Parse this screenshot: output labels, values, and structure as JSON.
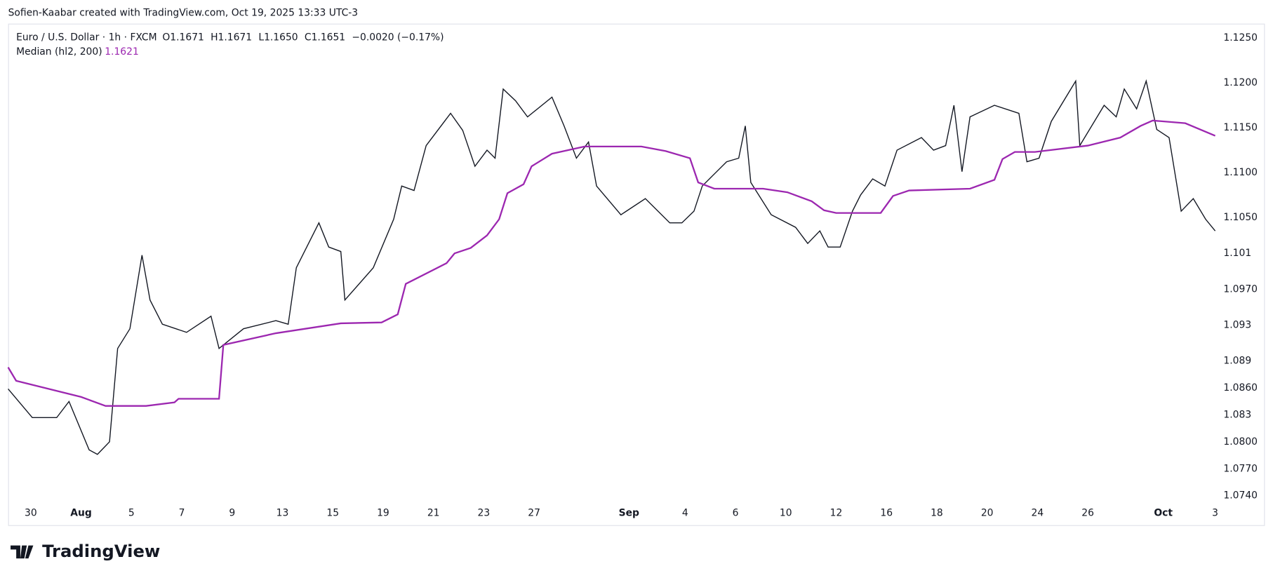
{
  "header": {
    "credit": "Sofien-Kaabar created with TradingView.com, Oct 19, 2025 13:33 UTC-3",
    "logo": "TradingView"
  },
  "chart_data": {
    "type": "line",
    "symbol": "Euro / U.S. Dollar · 1h · FXCM",
    "ohlc": [
      "O1.1671",
      "H1.1671",
      "L1.1650",
      "C1.1651",
      "−0.0020 (−0.17%)"
    ],
    "indicator": {
      "name": "Median (hl2, 200)",
      "value": "1.1621"
    },
    "xlim": [
      -0.9,
      47.1
    ],
    "xticks": [
      {
        "value": 0,
        "label": "30"
      },
      {
        "value": 2,
        "label": "Aug"
      },
      {
        "value": 4,
        "label": "5"
      },
      {
        "value": 6,
        "label": "7"
      },
      {
        "value": 8,
        "label": "9"
      },
      {
        "value": 10,
        "label": "13"
      },
      {
        "value": 12,
        "label": "15"
      },
      {
        "value": 14,
        "label": "19"
      },
      {
        "value": 16,
        "label": "21"
      },
      {
        "value": 18,
        "label": "23"
      },
      {
        "value": 20,
        "label": "27"
      },
      {
        "value": 23.77,
        "label": "Sep"
      },
      {
        "value": 26,
        "label": "4"
      },
      {
        "value": 28,
        "label": "6"
      },
      {
        "value": 30,
        "label": "10"
      },
      {
        "value": 32,
        "label": "12"
      },
      {
        "value": 34,
        "label": "16"
      },
      {
        "value": 36,
        "label": "18"
      },
      {
        "value": 38,
        "label": "20"
      },
      {
        "value": 40,
        "label": "24"
      },
      {
        "value": 42,
        "label": "26"
      },
      {
        "value": 45,
        "label": "Oct"
      },
      {
        "value": 47.06,
        "label": "3"
      }
    ],
    "ylim": [
      1.0709,
      1.1265
    ],
    "yticks": [
      {
        "value": 1.125,
        "label": "1.1250"
      },
      {
        "value": 1.12,
        "label": "1.1200"
      },
      {
        "value": 1.115,
        "label": "1.1150"
      },
      {
        "value": 1.11,
        "label": "1.1100"
      },
      {
        "value": 1.105,
        "label": "1.1050"
      },
      1.101,
      {
        "value": 1.097,
        "label": "1.0970"
      },
      1.093,
      1.089,
      {
        "value": 1.086,
        "label": "1.0860"
      },
      1.083,
      {
        "value": 1.08,
        "label": "1.0800"
      },
      {
        "value": 1.077,
        "label": "1.0770"
      },
      {
        "value": 1.074,
        "label": "1.0740"
      }
    ],
    "series": [
      {
        "name": "Euro / U.S. Dollar",
        "color": "#131722",
        "x": [
          -0.9,
          0.06,
          1.03,
          1.52,
          2.32,
          2.65,
          3.13,
          3.45,
          3.94,
          4.42,
          4.74,
          5.23,
          6.19,
          7.16,
          7.48,
          8.45,
          9.74,
          10.23,
          10.55,
          11.45,
          11.84,
          12.32,
          12.48,
          13.61,
          14.42,
          14.74,
          15.23,
          15.71,
          16.68,
          17.16,
          17.65,
          18.13,
          18.45,
          18.77,
          19.26,
          19.74,
          20.71,
          21.19,
          21.68,
          22.16,
          22.48,
          23.45,
          24.42,
          25.39,
          25.87,
          26.35,
          26.68,
          27.65,
          28.13,
          28.39,
          28.61,
          29.42,
          30.39,
          30.87,
          31.35,
          31.68,
          32.16,
          32.65,
          32.97,
          33.45,
          33.94,
          34.42,
          35.39,
          35.87,
          36.35,
          36.68,
          37.0,
          37.32,
          38.29,
          39.26,
          39.58,
          40.06,
          40.55,
          41.52,
          41.68,
          42.65,
          43.13,
          43.45,
          43.94,
          44.32,
          44.74,
          45.23,
          45.71,
          46.19,
          46.68,
          47.06
        ],
        "values": [
          1.0859,
          1.0827,
          1.0827,
          1.0845,
          1.0791,
          1.0786,
          1.08,
          1.0904,
          1.0926,
          1.1008,
          1.0958,
          1.0931,
          1.0922,
          1.094,
          1.0904,
          1.0926,
          1.0935,
          1.0931,
          1.0994,
          1.1044,
          1.1017,
          1.1012,
          1.0958,
          1.0994,
          1.1048,
          1.1085,
          1.108,
          1.113,
          1.1166,
          1.1147,
          1.1107,
          1.1125,
          1.1116,
          1.1193,
          1.118,
          1.1162,
          1.1184,
          1.1152,
          1.1116,
          1.1134,
          1.1085,
          1.1053,
          1.1071,
          1.1044,
          1.1044,
          1.1057,
          1.1085,
          1.1112,
          1.1116,
          1.1152,
          1.1089,
          1.1053,
          1.1039,
          1.1021,
          1.1035,
          1.1017,
          1.1017,
          1.1057,
          1.1075,
          1.1093,
          1.1085,
          1.1125,
          1.1139,
          1.1125,
          1.113,
          1.1175,
          1.1101,
          1.1162,
          1.1175,
          1.1166,
          1.1112,
          1.1116,
          1.1157,
          1.1202,
          1.113,
          1.1175,
          1.1162,
          1.1193,
          1.1171,
          1.1202,
          1.1148,
          1.1139,
          1.1057,
          1.1071,
          1.1048,
          1.1035
        ]
      },
      {
        "name": "Median",
        "color": "#9c27b0",
        "x": [
          -0.9,
          -0.58,
          0.71,
          2.0,
          2.97,
          4.58,
          5.71,
          5.87,
          7.48,
          7.65,
          9.74,
          12.32,
          13.94,
          14.58,
          14.9,
          16.52,
          16.84,
          17.48,
          18.13,
          18.61,
          18.94,
          19.58,
          19.9,
          20.71,
          22.0,
          24.26,
          25.23,
          26.19,
          26.52,
          27.16,
          29.1,
          30.06,
          31.03,
          31.52,
          32.0,
          33.77,
          34.26,
          34.9,
          37.32,
          38.29,
          38.61,
          39.1,
          39.9,
          42.0,
          43.29,
          44.1,
          44.58,
          45.87,
          47.06
        ],
        "values": [
          1.0883,
          1.0868,
          1.0859,
          1.085,
          1.084,
          1.084,
          1.0844,
          1.0848,
          1.0848,
          1.0908,
          1.0921,
          1.0932,
          1.0933,
          1.0942,
          1.0976,
          1.0999,
          1.101,
          1.1016,
          1.103,
          1.1048,
          1.1077,
          1.1087,
          1.1107,
          1.1121,
          1.1129,
          1.1129,
          1.1124,
          1.1116,
          1.1089,
          1.1082,
          1.1082,
          1.1078,
          1.1068,
          1.1058,
          1.1055,
          1.1055,
          1.1074,
          1.108,
          1.1082,
          1.1092,
          1.1115,
          1.1123,
          1.1123,
          1.113,
          1.1139,
          1.1152,
          1.1158,
          1.1155,
          1.1141
        ]
      }
    ]
  }
}
